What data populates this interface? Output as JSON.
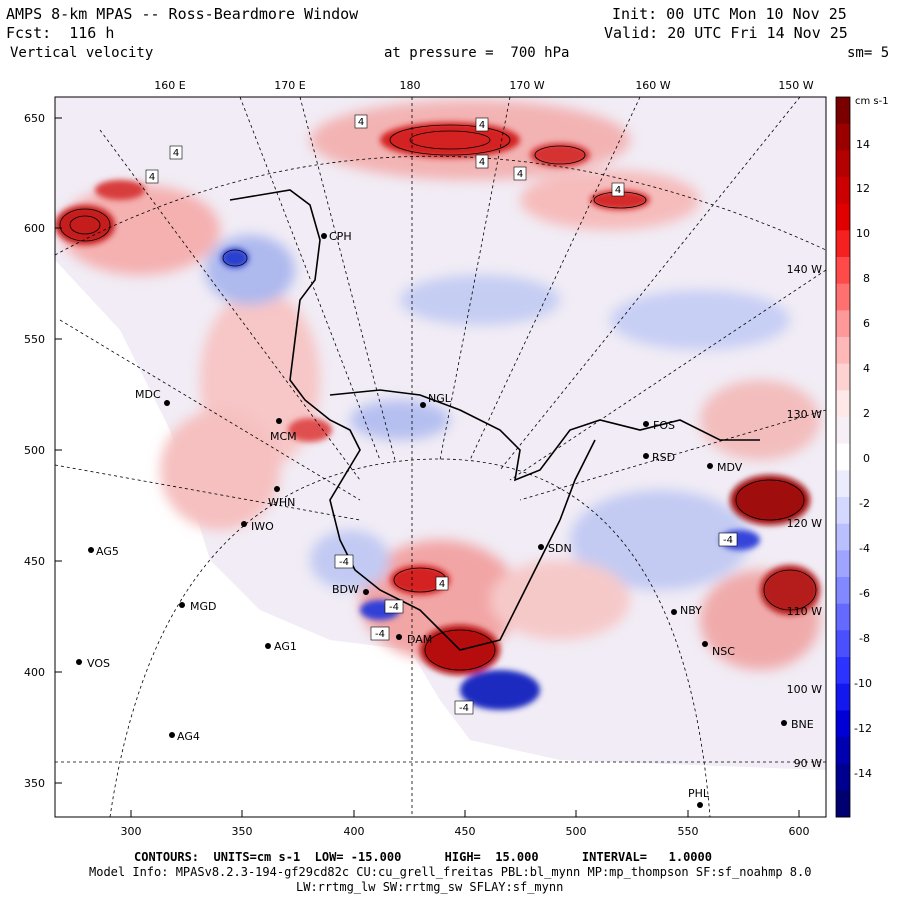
{
  "header": {
    "title": "AMPS 8-km MPAS -- Ross-Beardmore Window",
    "init": "Init: 00 UTC Mon 10 Nov 25",
    "fcst": "Fcst:  116 h",
    "valid": "Valid: 20 UTC Fri 14 Nov 25",
    "field": "Vertical velocity",
    "pressure": "at pressure =  700 hPa",
    "smooth": "sm= 5"
  },
  "lon_labels": [
    "160 E",
    "170 E",
    "180",
    "170 W",
    "160 W",
    "150 W"
  ],
  "side_lon_labels": [
    "140 W",
    "130 W",
    "120 W",
    "110 W",
    "100 W",
    "90 W"
  ],
  "y_ticks": [
    "650",
    "600",
    "550",
    "500",
    "450",
    "400",
    "350"
  ],
  "x_ticks": [
    "300",
    "350",
    "400",
    "450",
    "500",
    "550",
    "600"
  ],
  "stations": [
    "MDC",
    "CPH",
    "NGL",
    "MCM",
    "WHN",
    "IWO",
    "AG5",
    "MGD",
    "AG1",
    "VOS",
    "AG4",
    "BDW",
    "DAM",
    "SDN",
    "FOS",
    "RSD",
    "MDV",
    "NBY",
    "NSC",
    "BNE",
    "PHL"
  ],
  "contour_labels": [
    "4",
    "4",
    "4",
    "4",
    "4",
    "4",
    "4",
    "4",
    "-4",
    "-4",
    "-4",
    "-4",
    "-4"
  ],
  "colorbar": {
    "units": "cm s-1",
    "labels": [
      "14",
      "12",
      "10",
      "8",
      "6",
      "4",
      "2",
      "0",
      "-2",
      "-4",
      "-6",
      "-8",
      "-10",
      "-12",
      "-14"
    ],
    "colors": [
      "#7a0000",
      "#9a0000",
      "#b50000",
      "#cc0000",
      "#e00000",
      "#f52020",
      "#ff4a4a",
      "#ff7070",
      "#ff9898",
      "#ffb8b8",
      "#ffd2d2",
      "#ffe8e8",
      "#f6f0f6",
      "#ffffff",
      "#ececff",
      "#d4d8ff",
      "#babfff",
      "#9ea4ff",
      "#8288ff",
      "#646aff",
      "#4a50ff",
      "#2c32ff",
      "#1418f0",
      "#0000d6",
      "#0000b0",
      "#000090",
      "#000070"
    ]
  },
  "footer": {
    "contours": "CONTOURS:  UNITS=cm s-1  LOW= -15.000      HIGH=  15.000      INTERVAL=   1.0000",
    "model_info": "Model Info: MPASv8.2.3-194-gf29cd82c CU:cu_grell_freitas PBL:bl_mynn MP:mp_thompson SF:sf_noahmp 8.0",
    "model_info2": "LW:rrtmg_lw SW:rrtmg_sw SFLAY:sf_mynn"
  }
}
